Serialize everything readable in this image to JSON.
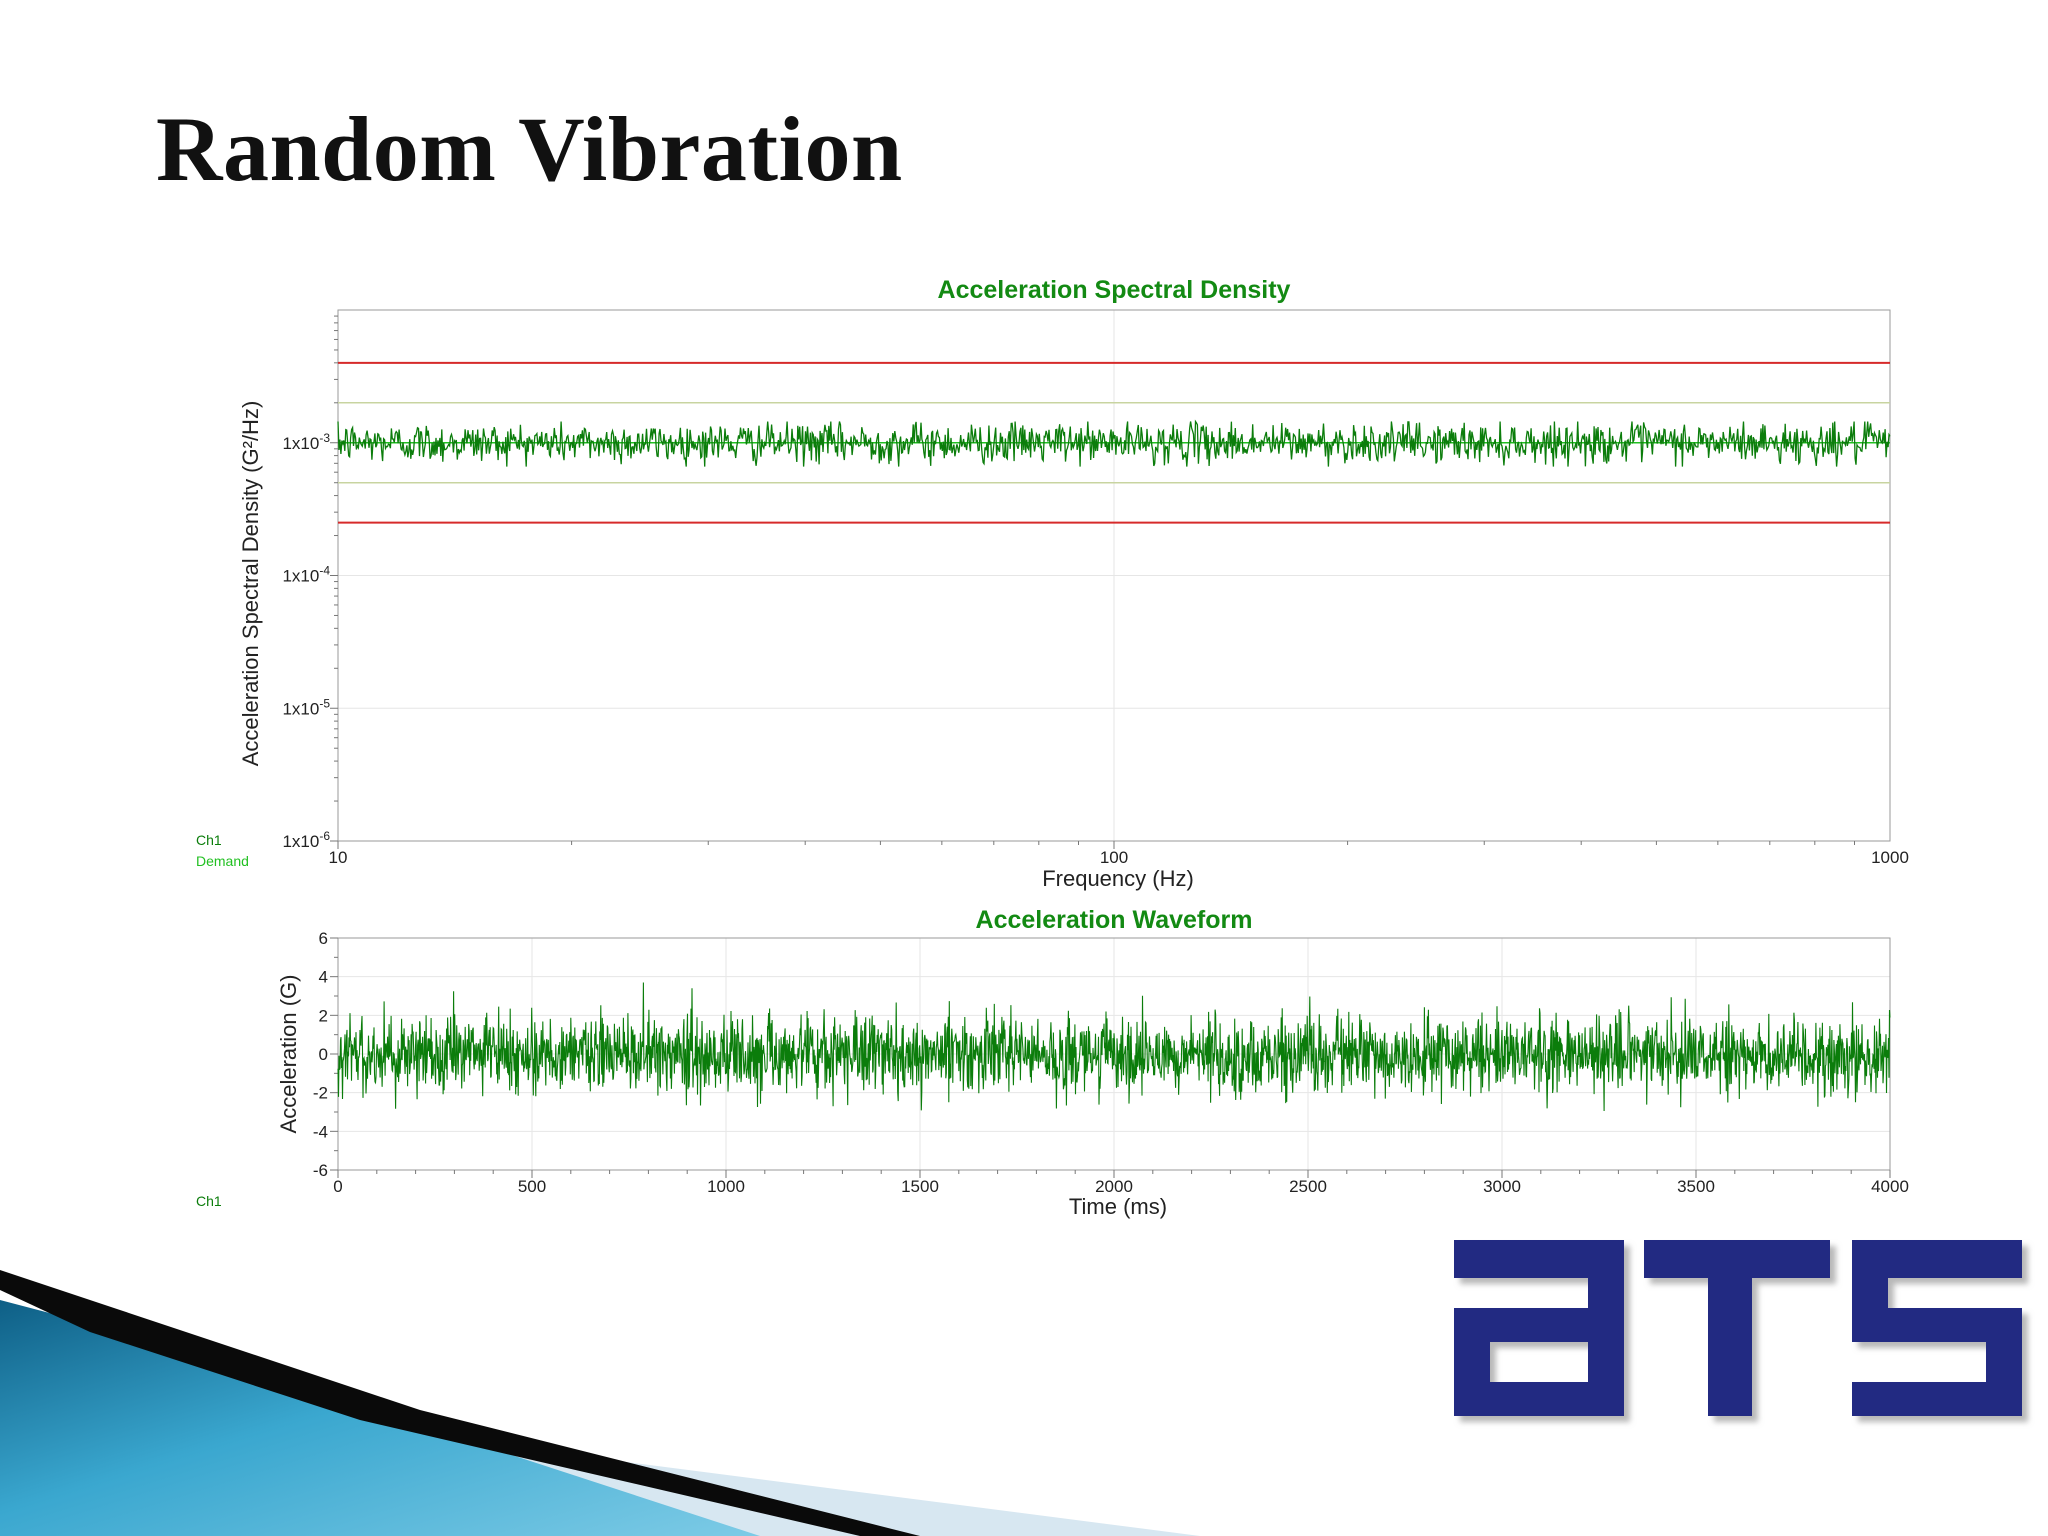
{
  "slide": {
    "title": "Random Vibration"
  },
  "colors": {
    "signal": "#0b7d0b",
    "demand": "#22c022",
    "abort": "#d62a2a",
    "warning": "#c8d4a0",
    "title": "#138a13",
    "logo": "#232a82"
  },
  "logo": {
    "text": "ATS"
  },
  "chart_data": [
    {
      "type": "line",
      "title": "Acceleration Spectral Density",
      "xlabel": "Frequency (Hz)",
      "ylabel": "Acceleration Spectral Density (G²/Hz)",
      "x_scale": "log",
      "y_scale": "log",
      "xlim": [
        10,
        1000
      ],
      "ylim": [
        1e-06,
        0.01
      ],
      "x_ticks": [
        {
          "value": 10,
          "label": "10"
        },
        {
          "value": 100,
          "label": "100"
        },
        {
          "value": 1000,
          "label": "1000"
        }
      ],
      "y_ticks": [
        {
          "value": 0.001,
          "base": "1x10",
          "exp": "-3"
        },
        {
          "value": 0.0001,
          "base": "1x10",
          "exp": "-4"
        },
        {
          "value": 1e-05,
          "base": "1x10",
          "exp": "-5"
        },
        {
          "value": 1e-06,
          "base": "1x10",
          "exp": "-6"
        }
      ],
      "grid": true,
      "legend": {
        "position": "bottom-left",
        "entries": [
          "Ch1",
          "Demand"
        ]
      },
      "series": [
        {
          "name": "Demand",
          "level": 0.001,
          "style": "flat"
        },
        {
          "name": "Ch1",
          "level": 0.001,
          "variation_range": [
            0.00065,
            0.0014
          ],
          "style": "noisy"
        }
      ],
      "limit_lines": [
        {
          "kind": "abort",
          "level": 0.004
        },
        {
          "kind": "abort",
          "level": 0.00025
        },
        {
          "kind": "warning",
          "level": 0.002
        },
        {
          "kind": "warning",
          "level": 0.0005
        }
      ]
    },
    {
      "type": "line",
      "title": "Acceleration Waveform",
      "xlabel": "Time (ms)",
      "ylabel": "Acceleration (G)",
      "xlim": [
        0,
        4000
      ],
      "ylim": [
        -6,
        6
      ],
      "x_ticks": [
        0,
        500,
        1000,
        1500,
        2000,
        2500,
        3000,
        3500,
        4000
      ],
      "y_ticks": [
        6,
        4,
        2,
        0,
        -2,
        -4,
        -6
      ],
      "grid": true,
      "legend": {
        "position": "bottom-left",
        "entries": [
          "Ch1"
        ]
      },
      "series": [
        {
          "name": "Ch1",
          "rms": 1.0,
          "peak_range": [
            -3.5,
            3.7
          ],
          "style": "noise"
        }
      ]
    }
  ]
}
